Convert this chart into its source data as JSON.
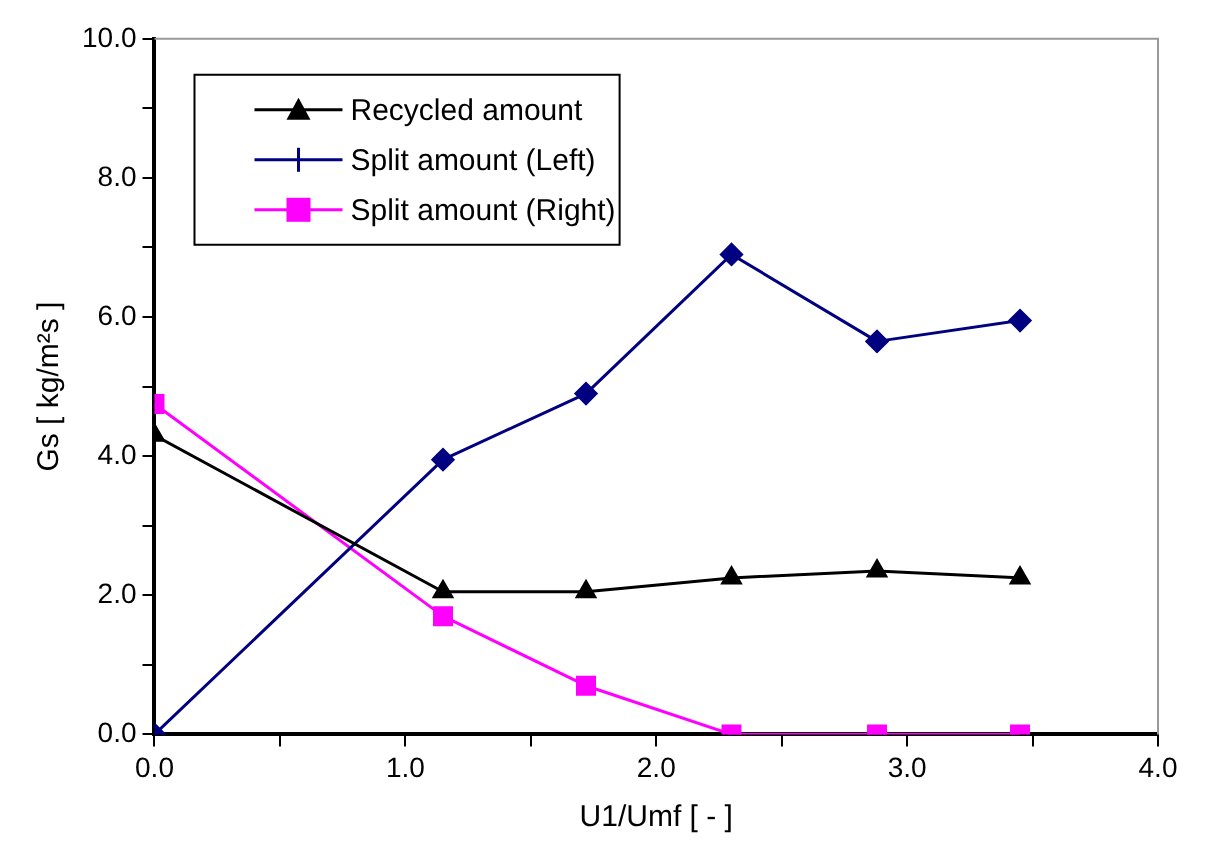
{
  "chart_data": {
    "type": "line",
    "xlabel": "U1/Umf [ - ]",
    "ylabel": "Gs [ kg/m²s ]",
    "xlim": [
      0,
      4
    ],
    "ylim": [
      0,
      10
    ],
    "xticks": [
      {
        "value": 0,
        "label": "0.0"
      },
      {
        "value": 0.5,
        "label": null
      },
      {
        "value": 1,
        "label": "1.0"
      },
      {
        "value": 1.5,
        "label": null
      },
      {
        "value": 2,
        "label": "2.0"
      },
      {
        "value": 2.5,
        "label": null
      },
      {
        "value": 3,
        "label": "3.0"
      },
      {
        "value": 3.5,
        "label": null
      },
      {
        "value": 4,
        "label": "4.0"
      }
    ],
    "yticks": [
      {
        "value": 0,
        "label": "0.0"
      },
      {
        "value": 1,
        "label": null
      },
      {
        "value": 2,
        "label": "2.0"
      },
      {
        "value": 3,
        "label": null
      },
      {
        "value": 4,
        "label": "4.0"
      },
      {
        "value": 5,
        "label": null
      },
      {
        "value": 6,
        "label": "6.0"
      },
      {
        "value": 7,
        "label": null
      },
      {
        "value": 8,
        "label": "8.0"
      },
      {
        "value": 9,
        "label": null
      },
      {
        "value": 10,
        "label": "10.0"
      }
    ],
    "grid": false,
    "legend": "top left",
    "line_style": "solid",
    "series": [
      {
        "name": "Recycled amount",
        "color": "#000000",
        "marker": "triangle",
        "x": [
          0,
          1.15,
          1.72,
          2.3,
          2.88,
          3.45
        ],
        "values": [
          4.3,
          2.05,
          2.05,
          2.25,
          2.35,
          2.25
        ]
      },
      {
        "name": "Split amount (Left)",
        "color": "#000080",
        "marker": "diamond",
        "x": [
          0,
          1.15,
          1.72,
          2.3,
          2.88,
          3.45
        ],
        "values": [
          0,
          3.95,
          4.9,
          6.9,
          5.65,
          5.95
        ]
      },
      {
        "name": "Split amount (Right)",
        "color": "#ff00ff",
        "marker": "square",
        "x": [
          0,
          1.15,
          1.72,
          2.3,
          2.88,
          3.45
        ],
        "values": [
          4.75,
          1.7,
          0.7,
          0,
          0,
          0
        ]
      }
    ]
  }
}
